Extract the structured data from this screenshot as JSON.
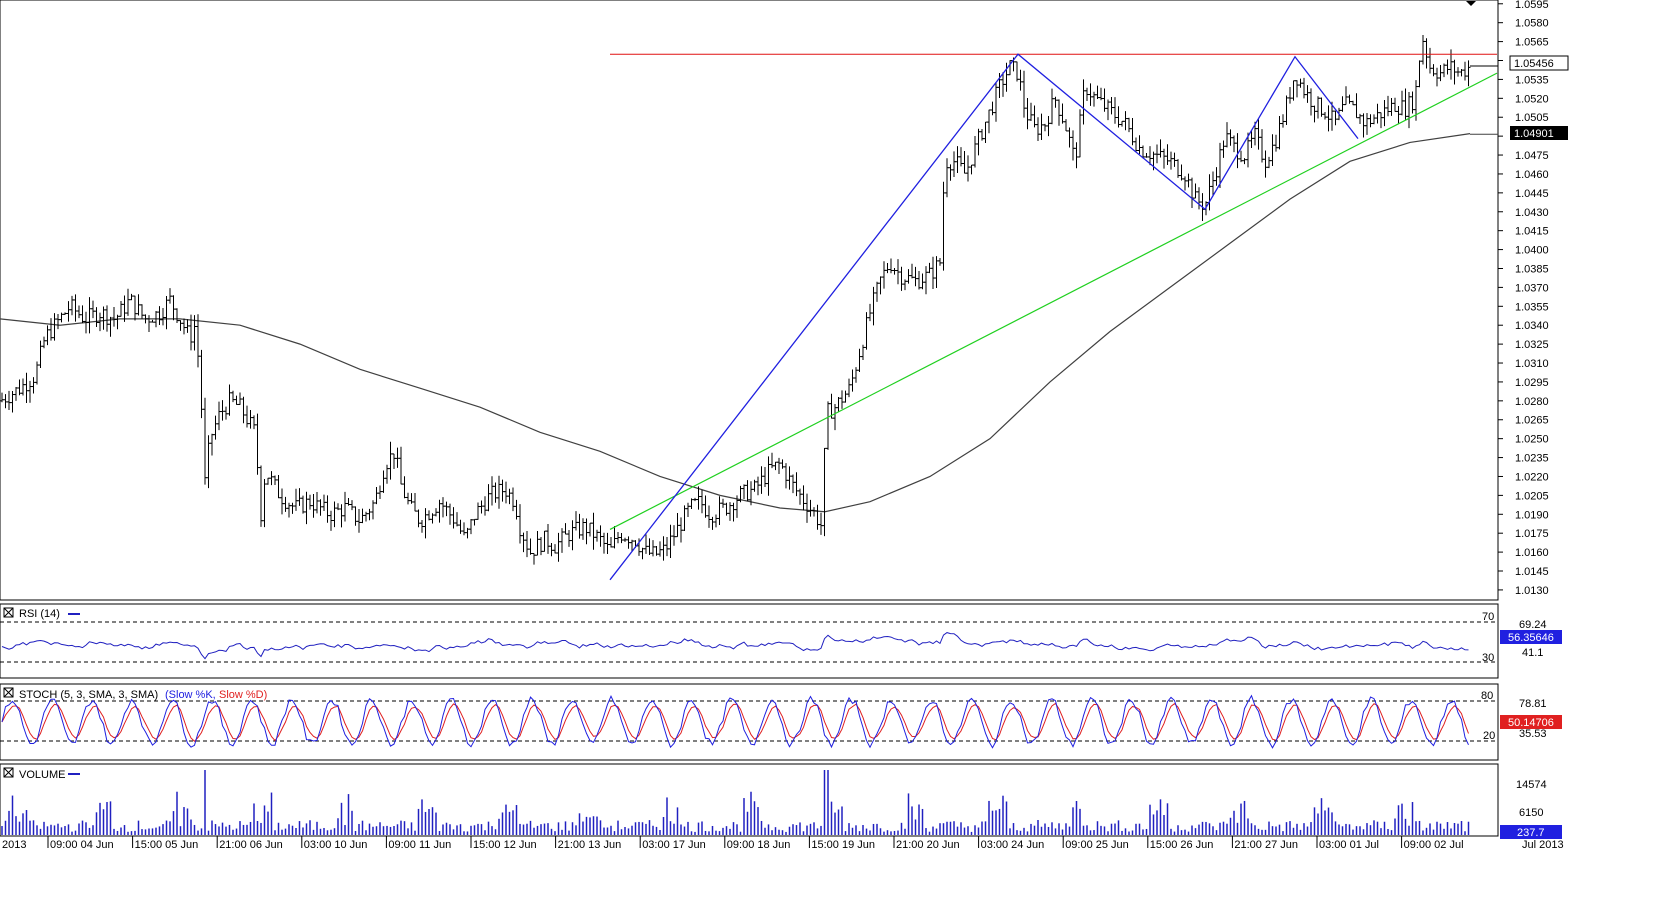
{
  "chart_data": {
    "type": "ohlc",
    "symbol_note": "EUR/CHF-like hourly bars, Jun–Jul 2013",
    "price_axis": {
      "range": [
        1.0122,
        1.0598
      ],
      "ticks": [
        "1.0130",
        "1.0145",
        "1.0160",
        "1.0175",
        "1.0190",
        "1.0205",
        "1.0220",
        "1.0235",
        "1.0250",
        "1.0265",
        "1.0280",
        "1.0295",
        "1.0310",
        "1.0325",
        "1.0340",
        "1.0355",
        "1.0370",
        "1.0385",
        "1.0400",
        "1.0415",
        "1.0430",
        "1.0445",
        "1.0460",
        "1.0475",
        "1.0490",
        "1.0505",
        "1.0520",
        "1.0535",
        "1.0550",
        "1.0565",
        "1.0580",
        "1.0595"
      ],
      "current_price_label": "1.05456",
      "ma_price_label": "1.04901"
    },
    "time_axis": {
      "labels": [
        "2013",
        "09:00 04 Jun",
        "15:00 05 Jun",
        "21:00 06 Jun",
        "03:00 10 Jun",
        "09:00 11 Jun",
        "15:00 12 Jun",
        "21:00 13 Jun",
        "03:00 17 Jun",
        "09:00 18 Jun",
        "15:00 19 Jun",
        "21:00 20 Jun",
        "03:00 24 Jun",
        "09:00 25 Jun",
        "15:00 26 Jun",
        "21:00 27 Jun",
        "03:00 01 Jul",
        "09:00 02 Jul",
        "Jul 2013"
      ]
    },
    "price_path": [
      [
        0,
        1.028
      ],
      [
        10,
        1.0285
      ],
      [
        20,
        1.029
      ],
      [
        35,
        1.03
      ],
      [
        45,
        1.033
      ],
      [
        60,
        1.0345
      ],
      [
        70,
        1.0355
      ],
      [
        85,
        1.0345
      ],
      [
        100,
        1.035
      ],
      [
        115,
        1.0345
      ],
      [
        130,
        1.036
      ],
      [
        145,
        1.0345
      ],
      [
        160,
        1.035
      ],
      [
        170,
        1.036
      ],
      [
        180,
        1.0345
      ],
      [
        190,
        1.033
      ],
      [
        195,
        1.034
      ],
      [
        200,
        1.03
      ],
      [
        205,
        1.0215
      ],
      [
        210,
        1.025
      ],
      [
        220,
        1.027
      ],
      [
        230,
        1.028
      ],
      [
        240,
        1.0275
      ],
      [
        255,
        1.0255
      ],
      [
        262,
        1.018
      ],
      [
        265,
        1.0225
      ],
      [
        280,
        1.0205
      ],
      [
        295,
        1.0195
      ],
      [
        310,
        1.02
      ],
      [
        330,
        1.019
      ],
      [
        345,
        1.0195
      ],
      [
        360,
        1.0185
      ],
      [
        375,
        1.02
      ],
      [
        385,
        1.023
      ],
      [
        395,
        1.024
      ],
      [
        400,
        1.0215
      ],
      [
        410,
        1.0195
      ],
      [
        420,
        1.0185
      ],
      [
        440,
        1.02
      ],
      [
        455,
        1.0185
      ],
      [
        465,
        1.017
      ],
      [
        475,
        1.019
      ],
      [
        490,
        1.0205
      ],
      [
        505,
        1.021
      ],
      [
        515,
        1.02
      ],
      [
        520,
        1.018
      ],
      [
        530,
        1.016
      ],
      [
        545,
        1.017
      ],
      [
        555,
        1.0165
      ],
      [
        570,
        1.0175
      ],
      [
        585,
        1.018
      ],
      [
        600,
        1.017
      ],
      [
        610,
        1.016
      ],
      [
        620,
        1.0175
      ],
      [
        635,
        1.017
      ],
      [
        645,
        1.016
      ],
      [
        655,
        1.0158
      ],
      [
        665,
        1.0162
      ],
      [
        675,
        1.0175
      ],
      [
        690,
        1.0195
      ],
      [
        700,
        1.02
      ],
      [
        710,
        1.019
      ],
      [
        725,
        1.0195
      ],
      [
        740,
        1.0205
      ],
      [
        755,
        1.021
      ],
      [
        770,
        1.0225
      ],
      [
        780,
        1.023
      ],
      [
        795,
        1.021
      ],
      [
        805,
        1.02
      ],
      [
        815,
        1.019
      ],
      [
        822,
        1.018
      ],
      [
        826,
        1.027
      ],
      [
        835,
        1.0275
      ],
      [
        850,
        1.029
      ],
      [
        860,
        1.032
      ],
      [
        870,
        1.035
      ],
      [
        880,
        1.0375
      ],
      [
        890,
        1.039
      ],
      [
        900,
        1.038
      ],
      [
        915,
        1.0375
      ],
      [
        930,
        1.038
      ],
      [
        940,
        1.039
      ],
      [
        945,
        1.047
      ],
      [
        955,
        1.047
      ],
      [
        965,
        1.046
      ],
      [
        975,
        1.048
      ],
      [
        990,
        1.051
      ],
      [
        1000,
        1.053
      ],
      [
        1010,
        1.0545
      ],
      [
        1018,
        1.054
      ],
      [
        1025,
        1.051
      ],
      [
        1035,
        1.0495
      ],
      [
        1045,
        1.05
      ],
      [
        1055,
        1.052
      ],
      [
        1065,
        1.05
      ],
      [
        1075,
        1.047
      ],
      [
        1085,
        1.053
      ],
      [
        1095,
        1.052
      ],
      [
        1110,
        1.051
      ],
      [
        1125,
        1.05
      ],
      [
        1140,
        1.048
      ],
      [
        1155,
        1.0475
      ],
      [
        1170,
        1.047
      ],
      [
        1185,
        1.046
      ],
      [
        1195,
        1.044
      ],
      [
        1205,
        1.0435
      ],
      [
        1215,
        1.046
      ],
      [
        1225,
        1.049
      ],
      [
        1235,
        1.048
      ],
      [
        1245,
        1.0475
      ],
      [
        1255,
        1.049
      ],
      [
        1265,
        1.047
      ],
      [
        1275,
        1.0485
      ],
      [
        1285,
        1.051
      ],
      [
        1295,
        1.054
      ],
      [
        1305,
        1.0525
      ],
      [
        1315,
        1.0515
      ],
      [
        1325,
        1.051
      ],
      [
        1335,
        1.05
      ],
      [
        1345,
        1.0515
      ],
      [
        1355,
        1.051
      ],
      [
        1365,
        1.05
      ],
      [
        1375,
        1.0505
      ],
      [
        1385,
        1.051
      ],
      [
        1395,
        1.0515
      ],
      [
        1405,
        1.0512
      ],
      [
        1415,
        1.052
      ],
      [
        1422,
        1.057
      ],
      [
        1430,
        1.0545
      ],
      [
        1440,
        1.054
      ],
      [
        1450,
        1.0545
      ],
      [
        1460,
        1.054
      ],
      [
        1470,
        1.0545
      ]
    ],
    "moving_average": [
      [
        0,
        1.0345
      ],
      [
        60,
        1.034
      ],
      [
        120,
        1.0345
      ],
      [
        180,
        1.0345
      ],
      [
        240,
        1.034
      ],
      [
        300,
        1.0325
      ],
      [
        360,
        1.0305
      ],
      [
        420,
        1.029
      ],
      [
        480,
        1.0275
      ],
      [
        540,
        1.0255
      ],
      [
        600,
        1.024
      ],
      [
        660,
        1.022
      ],
      [
        720,
        1.0205
      ],
      [
        780,
        1.0195
      ],
      [
        825,
        1.0192
      ],
      [
        870,
        1.02
      ],
      [
        930,
        1.022
      ],
      [
        990,
        1.025
      ],
      [
        1050,
        1.0295
      ],
      [
        1110,
        1.0335
      ],
      [
        1170,
        1.037
      ],
      [
        1230,
        1.0405
      ],
      [
        1290,
        1.044
      ],
      [
        1350,
        1.047
      ],
      [
        1410,
        1.0485
      ],
      [
        1470,
        1.0492
      ]
    ],
    "resistance_line": {
      "y": 1.0555,
      "x_start": 610,
      "x_end": 1497
    },
    "trend_line": {
      "p1": [
        610,
        1.0178
      ],
      "p2": [
        1497,
        1.054
      ]
    },
    "zigzag": [
      [
        610,
        1.0138
      ],
      [
        1018,
        1.0555
      ],
      [
        1205,
        1.0432
      ],
      [
        1295,
        1.0553
      ],
      [
        1358,
        1.0488
      ]
    ],
    "rsi": {
      "label": "RSI (14)",
      "current": "56.35646",
      "levels": [
        "70",
        "30"
      ],
      "range_labels": [
        "69.24",
        "41.1"
      ]
    },
    "stoch": {
      "label_blue": "STOCH (5, 3, SMA, 3, SMA)",
      "label_k": "(Slow %K,",
      "label_d": "Slow %D)",
      "current": "50.14706",
      "levels": [
        "80",
        "20"
      ],
      "range_labels": [
        "78.81",
        "35.53"
      ]
    },
    "volume": {
      "label": "VOLUME",
      "current": "237.7",
      "range_labels": [
        "14574",
        "6150"
      ]
    }
  },
  "colors": {
    "bars": "#000000",
    "ma": "#404040",
    "resistance": "#e01010",
    "trend": "#20d020",
    "zigzag": "#2020e0",
    "rsi": "#2020c0",
    "stoch_k": "#2020e0",
    "stoch_d": "#e02020",
    "volume": "#2020c0"
  }
}
